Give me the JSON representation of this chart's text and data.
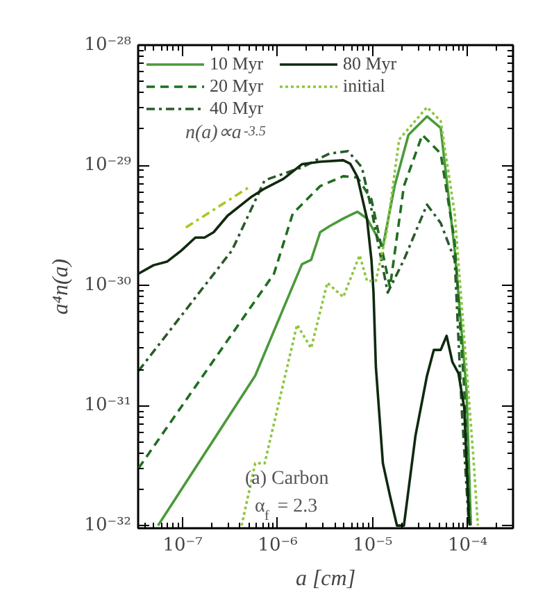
{
  "chart_data": {
    "type": "line",
    "xlabel": "a [cm]",
    "ylabel": "a⁴n(a)",
    "log": "xy",
    "grid": false,
    "legend": "top left",
    "xlim": [
      3.4e-08,
      0.0003
    ],
    "ylim": [
      9.5e-33,
      1e-28
    ],
    "xticks": [
      {
        "value": 1e-07,
        "label": "10⁻⁷"
      },
      {
        "value": 1e-06,
        "label": "10⁻⁶"
      },
      {
        "value": 1e-05,
        "label": "10⁻⁵"
      },
      {
        "value": 0.0001,
        "label": "10⁻⁴"
      }
    ],
    "yticks": [
      {
        "value": 1e-32,
        "label": "10⁻³²"
      },
      {
        "value": 1e-31,
        "label": "10⁻³¹"
      },
      {
        "value": 1e-30,
        "label": "10⁻³⁰"
      },
      {
        "value": 1e-29,
        "label": "10⁻²⁹"
      },
      {
        "value": 1e-28,
        "label": "10⁻²⁸"
      }
    ],
    "annotations": [
      "n(a)∝a$^{-3.5}$",
      "(a) Carbon",
      "α$_{f}$ = 2.3"
    ],
    "series": [
      {
        "name": "10 Myr",
        "color": "#4a9a3a",
        "line_style": "solid",
        "x": [
          5.5e-08,
          5.8e-07,
          1.8e-06,
          2.25e-06,
          2.8e-06,
          3.5e-06,
          4.9e-06,
          6.9e-06,
          8.7e-06,
          1.28e-05,
          1.7e-05,
          2.38e-05,
          3.73e-05,
          5.2e-05,
          7.3e-05,
          9.7e-05,
          0.000108
        ],
        "values": [
          1e-32,
          1.77e-31,
          1.5e-30,
          1.63e-30,
          2.77e-30,
          3.1e-30,
          3.6e-30,
          4.1e-30,
          3.6e-30,
          2.1e-30,
          6.7e-30,
          1.79e-29,
          2.55e-29,
          2.04e-29,
          1.95e-30,
          1.36e-31,
          1e-32
        ]
      },
      {
        "name": "20 Myr",
        "color": "#1f6e1f",
        "line_style": "dashed",
        "x": [
          3.43e-08,
          9.15e-07,
          1.44e-06,
          2.8e-06,
          4.9e-06,
          6.9e-06,
          9.7e-06,
          1.52e-05,
          2.13e-05,
          3.33e-05,
          5.2e-05,
          7.3e-05,
          9.2e-05,
          0.000105
        ],
        "values": [
          3e-32,
          1.25e-30,
          3.95e-30,
          6.7e-30,
          8.1e-30,
          7.9e-30,
          5.2e-30,
          9.6e-31,
          6.7e-30,
          1.79e-29,
          1.25e-29,
          2.3e-30,
          1.36e-31,
          1e-32
        ]
      },
      {
        "name": "40 Myr",
        "color": "#2a5a2a",
        "line_style": "dashdot",
        "x": [
          3.43e-08,
          3.3e-07,
          7.3e-07,
          1.8e-06,
          3.5e-06,
          5.5e-06,
          7.7e-06,
          9.7e-06,
          1.44e-05,
          2.13e-05,
          3.73e-05,
          5.2e-05,
          7.3e-05,
          8.7e-05,
          0.000103
        ],
        "values": [
          1.94e-31,
          1.95e-30,
          7.5e-30,
          9.6e-30,
          1.25e-29,
          1.31e-29,
          9.6e-30,
          4.3e-30,
          8.7e-31,
          1.63e-30,
          4.7e-30,
          3.3e-30,
          1.63e-30,
          8.7e-32,
          1e-32
        ]
      },
      {
        "name": "80 Myr",
        "color": "#0f2a0f",
        "line_style": "solid",
        "x": [
          3.43e-08,
          4.93e-08,
          6.9e-08,
          9.7e-08,
          1.36e-07,
          1.7e-07,
          2.12e-07,
          2.97e-07,
          5.2e-07,
          7.3e-07,
          1.15e-06,
          1.8e-06,
          2.8e-06,
          4.9e-06,
          5.8e-06,
          6.9e-06,
          8.7e-06,
          9.7e-06,
          1.02e-05,
          1.08e-05,
          1.28e-05,
          1.52e-05,
          1.8e-05,
          2.13e-05,
          2.82e-05,
          3.73e-05,
          4.4e-05,
          5.2e-05,
          6e-05,
          6.9e-05,
          8e-05,
          9.2e-05,
          0.000103,
          0.000105
        ],
        "values": [
          1.25e-30,
          1.47e-30,
          1.58e-30,
          1.95e-30,
          2.5e-30,
          2.5e-30,
          2.77e-30,
          3.8e-30,
          5.4e-30,
          6.4e-30,
          7.7e-30,
          1.02e-29,
          1.07e-29,
          1.1e-29,
          1.03e-29,
          8e-30,
          3.6e-30,
          1.63e-30,
          8.7e-31,
          2.1e-31,
          3.3e-32,
          1.77e-32,
          1e-32,
          1e-32,
          5.6e-32,
          1.77e-31,
          2.9e-31,
          2.9e-31,
          3.8e-31,
          2.3e-31,
          1.85e-31,
          9.5e-32,
          1.13e-32,
          1e-32
        ]
      },
      {
        "name": "initial",
        "color": "#8cc63f",
        "line_style": "dotted",
        "x": [
          4.17e-07,
          5.8e-07,
          7.3e-07,
          1.6e-06,
          2.25e-06,
          3.33e-06,
          4.9e-06,
          7.3e-06,
          8.7e-06,
          1.08e-05,
          1.4e-05,
          1.9e-05,
          3.73e-05,
          5.2e-05,
          7.3e-05,
          0.000115,
          0.000128
        ],
        "values": [
          1e-32,
          3.3e-32,
          3.3e-32,
          4.7e-31,
          3e-31,
          1.05e-30,
          8e-31,
          1.78e-30,
          1.09e-30,
          1.09e-30,
          2.77e-30,
          1.64e-29,
          3.04e-29,
          2.33e-29,
          3.95e-30,
          3.6e-32,
          1e-32
        ]
      },
      {
        "color": "#a8c820",
        "line_style": "dashdot",
        "x": [
          1.08e-07,
          5.2e-07
        ],
        "values": [
          3.03e-30,
          6.7e-30
        ]
      }
    ]
  }
}
